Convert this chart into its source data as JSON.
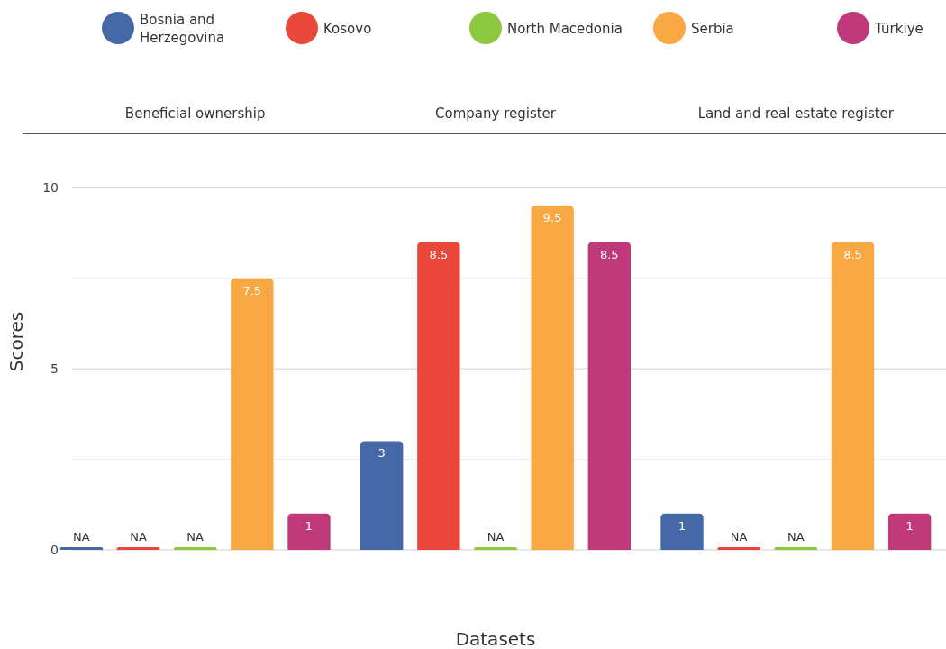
{
  "chart_data": {
    "type": "bar",
    "xlabel": "Datasets",
    "ylabel": "Scores",
    "categories": [
      "Beneficial ownership",
      "Company register",
      "Land and real estate register"
    ],
    "series": [
      {
        "name": "Bosnia and Herzegovina",
        "color": "#4569a6",
        "values": [
          0,
          3,
          1
        ],
        "value_labels": [
          "NA",
          "3",
          "1"
        ]
      },
      {
        "name": "Kosovo",
        "color": "#e8473a",
        "values": [
          0,
          8.5,
          0
        ],
        "value_labels": [
          "NA",
          "8.5",
          "NA"
        ]
      },
      {
        "name": "North Macedonia",
        "color": "#8dc63f",
        "values": [
          0,
          0,
          0
        ],
        "value_labels": [
          "NA",
          "NA",
          "NA"
        ]
      },
      {
        "name": "Serbia",
        "color": "#f8a843",
        "values": [
          7.5,
          9.5,
          8.5
        ],
        "value_labels": [
          "7.5",
          "9.5",
          "8.5"
        ]
      },
      {
        "name": "Türkiye",
        "color": "#c0397a",
        "values": [
          1,
          8.5,
          1
        ],
        "value_labels": [
          "1",
          "8.5",
          "1"
        ]
      }
    ],
    "ylim": [
      0,
      11.5
    ],
    "yticks": [
      0,
      {
        "value": 2.5,
        "label": null
      },
      5,
      {
        "value": 7.5,
        "label": null
      },
      10
    ],
    "grid": "y",
    "legend": "top"
  }
}
